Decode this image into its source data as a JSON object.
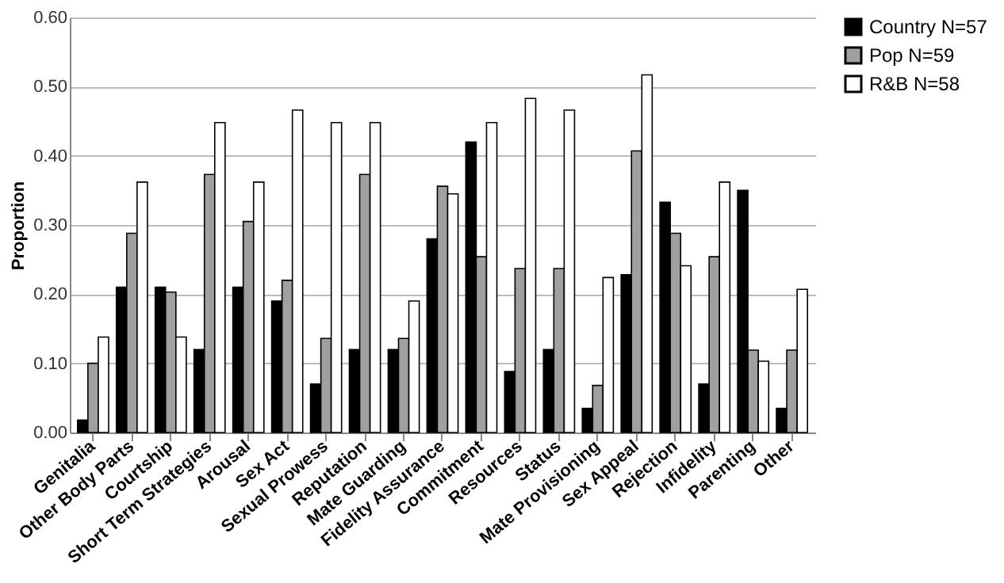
{
  "chart_data": {
    "type": "bar",
    "ylabel": "Proportion",
    "categories": [
      "Genitalia",
      "Other Body Parts",
      "Courtship",
      "Short Term Strategies",
      "Arousal",
      "Sex Act",
      "Sexual Prowess",
      "Reputation",
      "Mate Guarding",
      "Fidelity Assurance",
      "Commitment",
      "Resources",
      "Status",
      "Mate Provisioning",
      "Sex Appeal",
      "Rejection",
      "Infidelity",
      "Parenting",
      "Other"
    ],
    "series": [
      {
        "name": "Country N=57",
        "color": "#000000",
        "values": [
          0.018,
          0.21,
          0.21,
          0.12,
          0.21,
          0.19,
          0.07,
          0.12,
          0.12,
          0.28,
          0.42,
          0.088,
          0.12,
          0.035,
          0.228,
          0.333,
          0.07,
          0.35,
          0.035
        ]
      },
      {
        "name": "Pop N=59",
        "color": "#a0a0a0",
        "values": [
          0.1,
          0.288,
          0.203,
          0.373,
          0.305,
          0.22,
          0.136,
          0.373,
          0.136,
          0.356,
          0.254,
          0.237,
          0.237,
          0.068,
          0.407,
          0.288,
          0.254,
          0.119,
          0.119
        ]
      },
      {
        "name": "R&B N=58",
        "color": "#ffffff",
        "values": [
          0.138,
          0.362,
          0.138,
          0.448,
          0.362,
          0.466,
          0.448,
          0.448,
          0.19,
          0.345,
          0.448,
          0.483,
          0.466,
          0.224,
          0.517,
          0.241,
          0.362,
          0.103,
          0.207
        ]
      }
    ],
    "ylim": [
      0,
      0.6
    ],
    "yticks": [
      {
        "value": 0,
        "label": "0.00"
      },
      {
        "value": 0.1,
        "label": "0.10"
      },
      {
        "value": 0.2,
        "label": "0.20"
      },
      {
        "value": 0.3,
        "label": "0.30"
      },
      {
        "value": 0.4,
        "label": "0.40"
      },
      {
        "value": 0.5,
        "label": "0.50"
      },
      {
        "value": 0.6,
        "label": "0.60"
      }
    ],
    "grid": "y",
    "legend": "right"
  }
}
